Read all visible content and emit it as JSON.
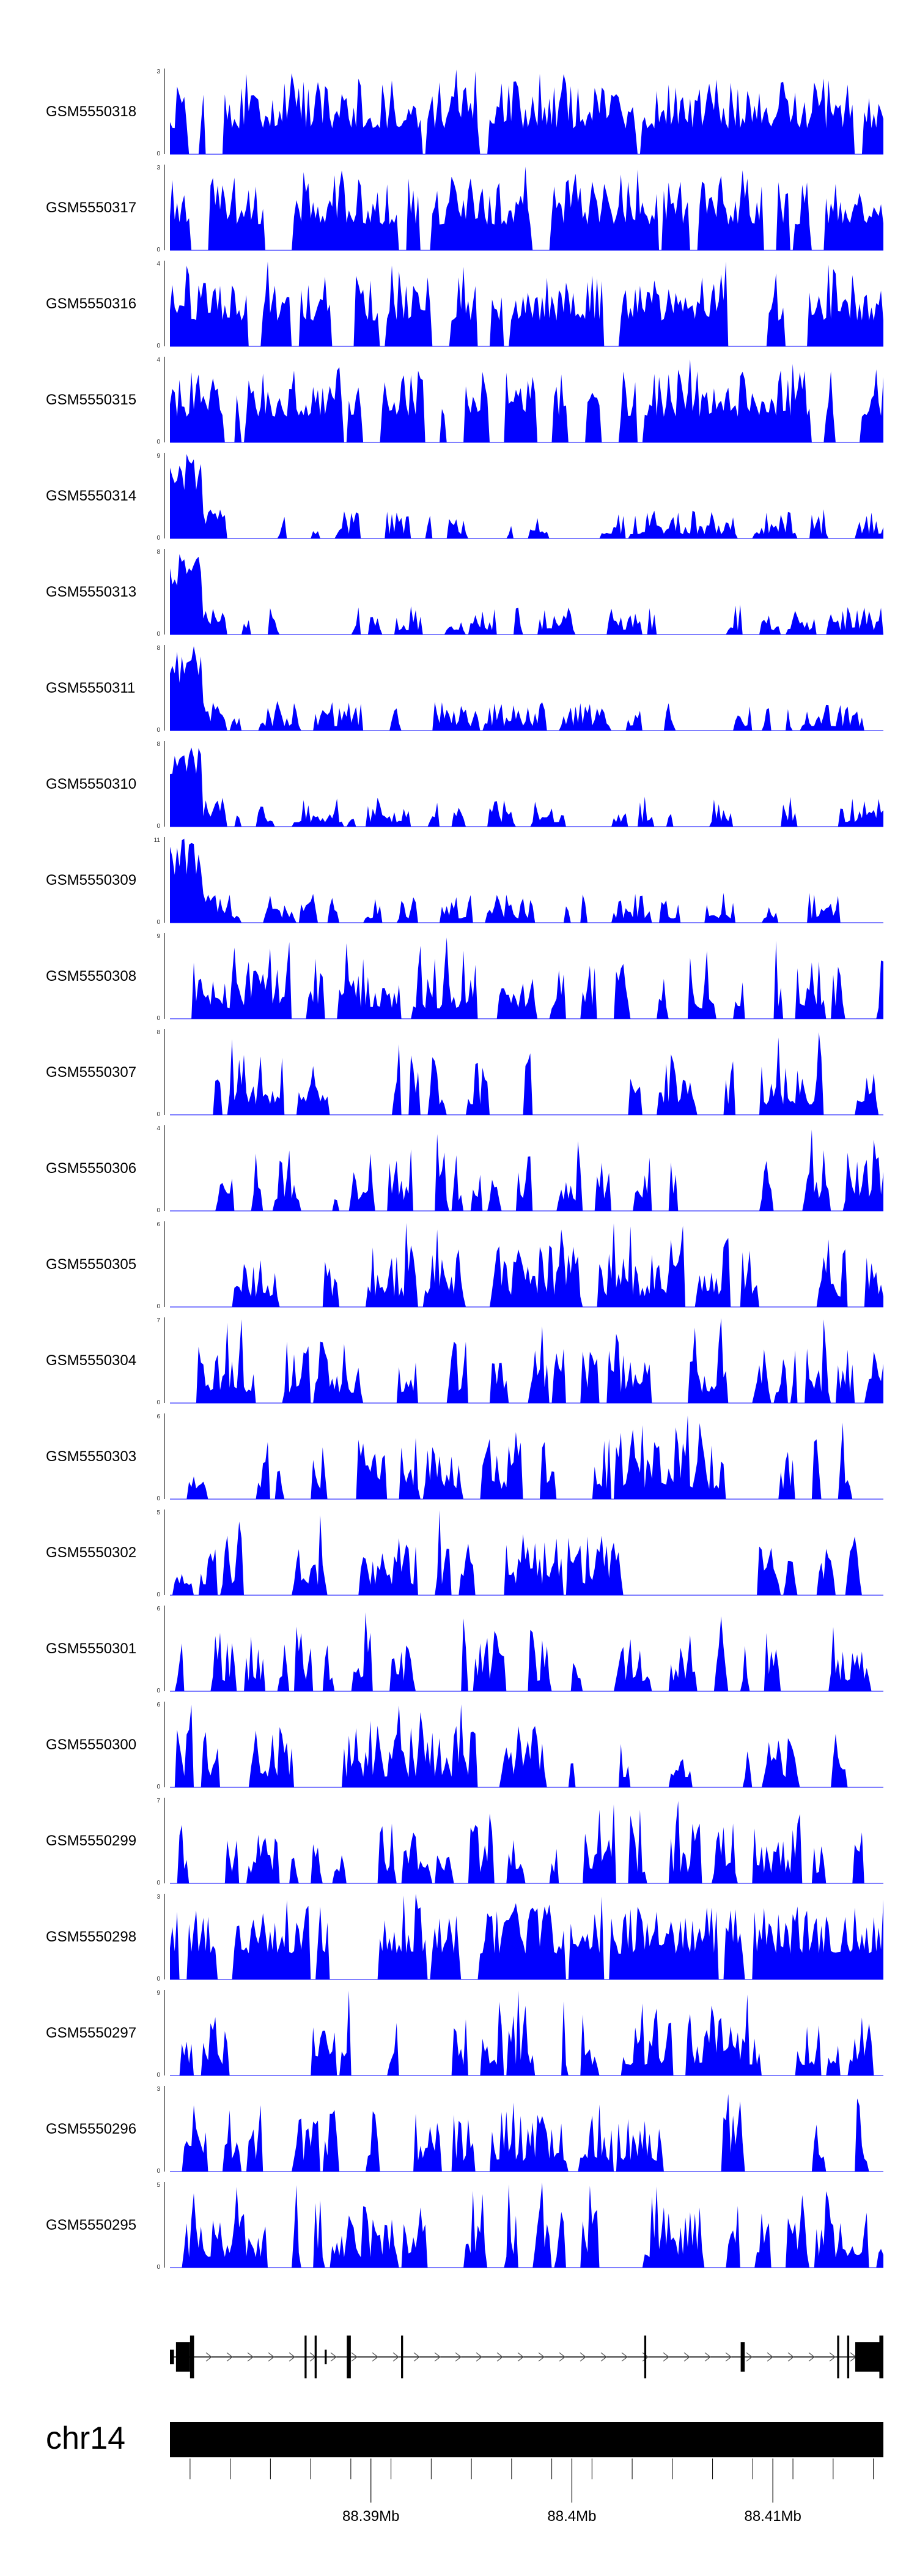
{
  "chart_data": {
    "type": "area",
    "colors": {
      "signal": "#0000ff",
      "axis": "#000000",
      "gene": "#000000",
      "chromosome": "#000000"
    },
    "genome": {
      "chromosome": "chr14",
      "start": 88380000,
      "end": 88415500
    },
    "x_ticks": [
      {
        "position": 88390000,
        "label": "88.39Mb"
      },
      {
        "position": 88400000,
        "label": "88.4Mb"
      },
      {
        "position": 88410000,
        "label": "88.41Mb"
      }
    ],
    "minor_ticks": [
      88381000,
      88383000,
      88385000,
      88387000,
      88389000,
      88391000,
      88393000,
      88395000,
      88397000,
      88399000,
      88401000,
      88403000,
      88405000,
      88407000,
      88409000,
      88411000,
      88413000,
      88415000
    ],
    "tracks": [
      {
        "name": "GSM5550318",
        "ymax": 3,
        "ymin": 0,
        "profile": "dense",
        "seed": 318
      },
      {
        "name": "GSM5550317",
        "ymax": 3,
        "ymin": 0,
        "profile": "dense",
        "seed": 317
      },
      {
        "name": "GSM5550316",
        "ymax": 4,
        "ymin": 0,
        "profile": "dense",
        "seed": 316
      },
      {
        "name": "GSM5550315",
        "ymax": 4,
        "ymin": 0,
        "profile": "dense",
        "seed": 315
      },
      {
        "name": "GSM5550314",
        "ymax": 9,
        "ymin": 0,
        "profile": "lead",
        "seed": 314
      },
      {
        "name": "GSM5550313",
        "ymax": 8,
        "ymin": 0,
        "profile": "lead",
        "seed": 313
      },
      {
        "name": "GSM5550311",
        "ymax": 8,
        "ymin": 0,
        "profile": "lead",
        "seed": 311
      },
      {
        "name": "GSM5550310",
        "ymax": 8,
        "ymin": 0,
        "profile": "lead",
        "seed": 310
      },
      {
        "name": "GSM5550309",
        "ymax": 11,
        "ymin": 0,
        "profile": "lead",
        "seed": 309
      },
      {
        "name": "GSM5550308",
        "ymax": 9,
        "ymin": 0,
        "profile": "sparse",
        "seed": 308
      },
      {
        "name": "GSM5550307",
        "ymax": 8,
        "ymin": 0,
        "profile": "sparse",
        "seed": 307
      },
      {
        "name": "GSM5550306",
        "ymax": 4,
        "ymin": 0,
        "profile": "sparse",
        "seed": 306
      },
      {
        "name": "GSM5550305",
        "ymax": 6,
        "ymin": 0,
        "profile": "sparse",
        "seed": 305
      },
      {
        "name": "GSM5550304",
        "ymax": 7,
        "ymin": 0,
        "profile": "sparse",
        "seed": 304
      },
      {
        "name": "GSM5550303",
        "ymax": 6,
        "ymin": 0,
        "profile": "sparse",
        "seed": 303
      },
      {
        "name": "GSM5550302",
        "ymax": 5,
        "ymin": 0,
        "profile": "sparse",
        "seed": 302
      },
      {
        "name": "GSM5550301",
        "ymax": 6,
        "ymin": 0,
        "profile": "sparse",
        "seed": 301
      },
      {
        "name": "GSM5550300",
        "ymax": 6,
        "ymin": 0,
        "profile": "sparse",
        "seed": 300
      },
      {
        "name": "GSM5550299",
        "ymax": 7,
        "ymin": 0,
        "profile": "sparse",
        "seed": 299
      },
      {
        "name": "GSM5550298",
        "ymax": 3,
        "ymin": 0,
        "profile": "dense",
        "seed": 298
      },
      {
        "name": "GSM5550297",
        "ymax": 9,
        "ymin": 0,
        "profile": "sparse",
        "seed": 297
      },
      {
        "name": "GSM5550296",
        "ymax": 3,
        "ymin": 0,
        "profile": "sparse",
        "seed": 296
      },
      {
        "name": "GSM5550295",
        "ymax": 5,
        "ymin": 0,
        "profile": "sparse",
        "seed": 295
      }
    ],
    "gene": {
      "start": 88380000,
      "end": 88415500,
      "strand": "+",
      "exons": [
        {
          "start": 88380000,
          "end": 88380200,
          "height": "thin"
        },
        {
          "start": 88380300,
          "end": 88381000,
          "height": "thick"
        },
        {
          "start": 88381000,
          "end": 88381200,
          "height": "tall"
        },
        {
          "start": 88386700,
          "end": 88386800,
          "height": "tall"
        },
        {
          "start": 88387200,
          "end": 88387300,
          "height": "tall"
        },
        {
          "start": 88387700,
          "end": 88387800,
          "height": "thin"
        },
        {
          "start": 88388800,
          "end": 88389000,
          "height": "tall"
        },
        {
          "start": 88391500,
          "end": 88391600,
          "height": "tall"
        },
        {
          "start": 88403600,
          "end": 88403700,
          "height": "tall"
        },
        {
          "start": 88408400,
          "end": 88408600,
          "height": "thick"
        },
        {
          "start": 88413200,
          "end": 88413300,
          "height": "tall"
        },
        {
          "start": 88413700,
          "end": 88413800,
          "height": "tall"
        },
        {
          "start": 88414100,
          "end": 88415500,
          "height": "thick"
        },
        {
          "start": 88415300,
          "end": 88415500,
          "height": "tall"
        }
      ]
    }
  }
}
